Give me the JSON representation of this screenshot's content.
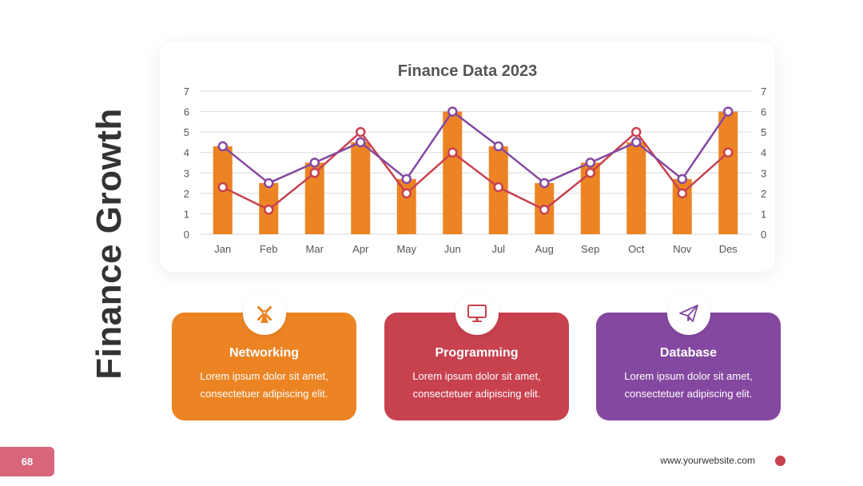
{
  "page": {
    "side_title": "Finance Growth",
    "page_number": "68",
    "website": "www.yourwebsite.com"
  },
  "colors": {
    "orange": "#ec8423",
    "red": "#c8414f",
    "purple": "#8548a0",
    "axis_text": "#555555",
    "grid": "#d9d9d9"
  },
  "chart_data": {
    "type": "bar",
    "title": "Finance Data 2023",
    "categories": [
      "Jan",
      "Feb",
      "Mar",
      "Apr",
      "May",
      "Jun",
      "Jul",
      "Aug",
      "Sep",
      "Oct",
      "Nov",
      "Des"
    ],
    "ylim": [
      0,
      7
    ],
    "y_ticks": [
      "0",
      "1",
      "2",
      "3",
      "4",
      "5",
      "6",
      "7"
    ],
    "y2_ticks": [
      "0",
      "1",
      "2",
      "3",
      "4",
      "5",
      "6",
      "7"
    ],
    "grid": true,
    "legend": "none",
    "series": [
      {
        "type": "bar",
        "values": [
          4.3,
          2.5,
          3.5,
          4.5,
          2.7,
          6.0,
          4.3,
          2.5,
          3.5,
          4.5,
          2.7,
          6.0
        ],
        "color": "#ec8423"
      },
      {
        "type": "line",
        "values": [
          4.3,
          2.5,
          3.5,
          4.5,
          2.7,
          6.0,
          4.3,
          2.5,
          3.5,
          4.5,
          2.7,
          6.0
        ],
        "color": "#8548a0"
      },
      {
        "type": "line",
        "values": [
          2.3,
          1.2,
          3.0,
          5.0,
          2.0,
          4.0,
          2.3,
          1.2,
          3.0,
          5.0,
          2.0,
          4.0
        ],
        "color": "#c8414f"
      }
    ]
  },
  "cards": [
    {
      "title": "Networking",
      "text": "Lorem ipsum dolor sit amet, consectetuer adipiscing elit.",
      "color": "#ec8423",
      "icon": "windmill-icon"
    },
    {
      "title": "Programming",
      "text": "Lorem ipsum dolor sit amet, consectetuer adipiscing elit.",
      "color": "#c8414f",
      "icon": "monitor-icon"
    },
    {
      "title": "Database",
      "text": "Lorem ipsum dolor sit amet, consectetuer adipiscing elit.",
      "color": "#8548a0",
      "icon": "paper-plane-icon"
    }
  ]
}
